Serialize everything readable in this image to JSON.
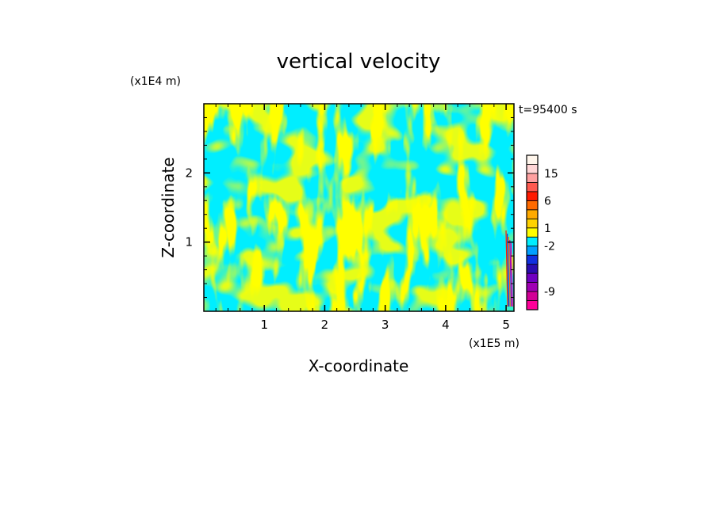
{
  "chart_data": {
    "type": "heatmap",
    "title": "vertical velocity",
    "xlabel": "X-coordinate",
    "ylabel": "Z-coordinate",
    "x_unit": "(x1E5 m)",
    "y_unit": "(x1E4 m)",
    "time_label": "t=95400 s",
    "xlim": [
      0,
      5.13
    ],
    "ylim": [
      0,
      3.0
    ],
    "x_ticks": [
      {
        "value": 1,
        "label": "1"
      },
      {
        "value": 2,
        "label": "2"
      },
      {
        "value": 3,
        "label": "3"
      },
      {
        "value": 4,
        "label": "4"
      },
      {
        "value": 5,
        "label": "5"
      }
    ],
    "y_ticks": [
      {
        "value": 1,
        "label": "1"
      },
      {
        "value": 2,
        "label": "2"
      }
    ],
    "colorbar": {
      "levels": [
        {
          "color": "#ff0099"
        },
        {
          "color": "#d20096"
        },
        {
          "color": "#a000b4"
        },
        {
          "color": "#7000c0"
        },
        {
          "color": "#2a0cb0"
        },
        {
          "color": "#1030e0"
        },
        {
          "color": "#00a0ff"
        },
        {
          "color": "#00eeff"
        },
        {
          "color": "#ffff00"
        },
        {
          "color": "#ffd200"
        },
        {
          "color": "#ffaa00"
        },
        {
          "color": "#ff6a00"
        },
        {
          "color": "#ff1a00"
        },
        {
          "color": "#ff5a50"
        },
        {
          "color": "#ffa0a0"
        },
        {
          "color": "#ffd6d6"
        },
        {
          "color": "#fff6ec"
        }
      ],
      "labels": [
        {
          "value": "-9"
        },
        {
          "value": "-2"
        },
        {
          "value": "1"
        },
        {
          "value": "6"
        },
        {
          "value": "15"
        }
      ]
    },
    "field_colors": {
      "positive": "#ffff00",
      "negative": "#00eeff"
    }
  }
}
